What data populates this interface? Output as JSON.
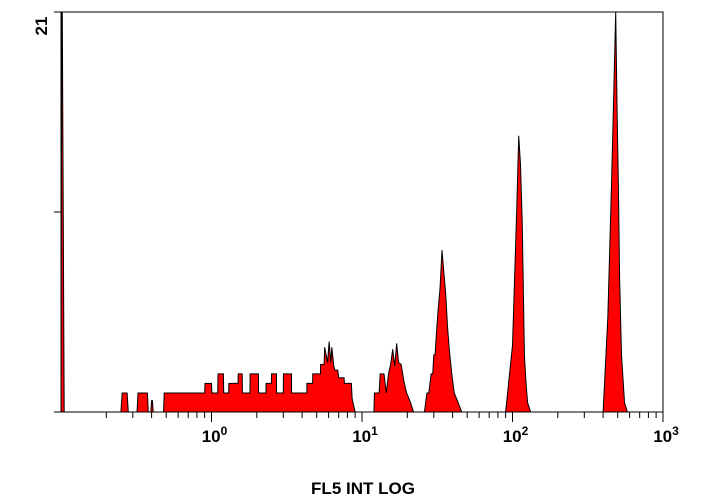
{
  "chart_data": {
    "type": "area",
    "xlabel": "FL5 INT LOG",
    "xscale": "log",
    "xlim": [
      0.1,
      1000
    ],
    "ylim": [
      0,
      21
    ],
    "y_tick_values": [
      0,
      10.5,
      21
    ],
    "y_tick_label": "21",
    "x_tick_labels": [
      {
        "base": "10",
        "exp": "0",
        "value": 1
      },
      {
        "base": "10",
        "exp": "1",
        "value": 10
      },
      {
        "base": "10",
        "exp": "2",
        "value": 100
      },
      {
        "base": "10",
        "exp": "3",
        "value": 1000
      }
    ],
    "fill_color": "#ff0000",
    "line_color": "#000000",
    "grid": false,
    "series": [
      {
        "x": [
          0.1,
          0.101,
          0.102,
          0.105,
          0.25,
          0.255,
          0.275,
          0.28,
          0.32,
          0.325,
          0.375,
          0.38,
          0.395,
          0.4,
          0.405,
          0.41,
          0.48,
          0.485,
          0.9,
          0.905,
          1.0,
          1.005,
          1.1,
          1.105,
          1.2,
          1.205,
          1.3,
          1.305,
          1.5,
          1.505,
          1.6,
          1.605,
          1.8,
          1.805,
          2.05,
          2.055,
          2.3,
          2.305,
          2.5,
          2.505,
          2.7,
          2.705,
          3.0,
          3.005,
          3.4,
          3.405,
          4.3,
          4.305,
          4.7,
          4.705,
          5.3,
          5.305,
          5.6,
          5.65,
          5.9,
          6.05,
          6.2,
          6.3,
          6.5,
          6.6,
          6.9,
          7.0,
          7.6,
          7.65,
          8.5,
          8.6,
          9.0,
          12.0,
          12.1,
          13.0,
          13.2,
          14.0,
          14.5,
          15.0,
          15.5,
          16.0,
          16.5,
          17.0,
          17.5,
          18.2,
          19.0,
          19.8,
          21.0,
          22.0,
          26.0,
          27.0,
          27.8,
          28.8,
          29.5,
          30.0,
          30.6,
          31.2,
          32.0,
          33.0,
          34.0,
          35.0,
          36.0,
          37.0,
          38.0,
          39.5,
          41.0,
          43.0,
          46.0,
          90.0,
          100.0,
          104.0,
          107.0,
          110.0,
          113.0,
          116.0,
          118.0,
          120.0,
          123.0,
          126.0,
          132.0,
          400.0,
          430.0,
          455.0,
          470.0,
          485.0,
          495.0,
          505.0,
          515.0,
          530.0,
          555.0,
          580.0,
          1000.0
        ],
        "y": [
          0,
          21,
          21,
          0,
          0,
          1,
          1,
          0,
          0,
          1,
          1,
          0,
          0,
          0.6,
          0.6,
          0,
          0,
          1,
          1,
          1.5,
          1.5,
          1,
          1,
          2,
          2,
          1,
          1,
          1.5,
          1.5,
          2,
          2,
          1,
          1,
          2,
          2,
          1,
          1,
          1.5,
          1.5,
          2,
          2,
          1,
          1,
          2,
          2,
          1,
          1,
          1.5,
          1.5,
          2,
          2,
          2.5,
          2.5,
          3.4,
          2.6,
          3.7,
          2.6,
          3.4,
          2.4,
          2.2,
          2.2,
          1.8,
          1.8,
          1.5,
          1.5,
          0.7,
          0,
          0,
          1,
          1,
          2,
          2,
          1,
          2,
          2.5,
          3.3,
          2.4,
          3.6,
          2.6,
          2.5,
          1.6,
          1.0,
          0.5,
          0,
          0,
          1,
          1,
          2,
          2,
          3,
          3,
          4.1,
          5.3,
          6.5,
          8.5,
          7.3,
          6.2,
          4.5,
          3.3,
          2.0,
          1.0,
          0.6,
          0,
          0,
          3.5,
          7.8,
          11.0,
          14.5,
          13.0,
          10.0,
          6.5,
          3.0,
          1.5,
          0.5,
          0,
          0,
          5.0,
          12.0,
          16.5,
          21.0,
          16.0,
          12.0,
          7.0,
          3.0,
          0.5,
          0,
          0
        ]
      }
    ]
  }
}
